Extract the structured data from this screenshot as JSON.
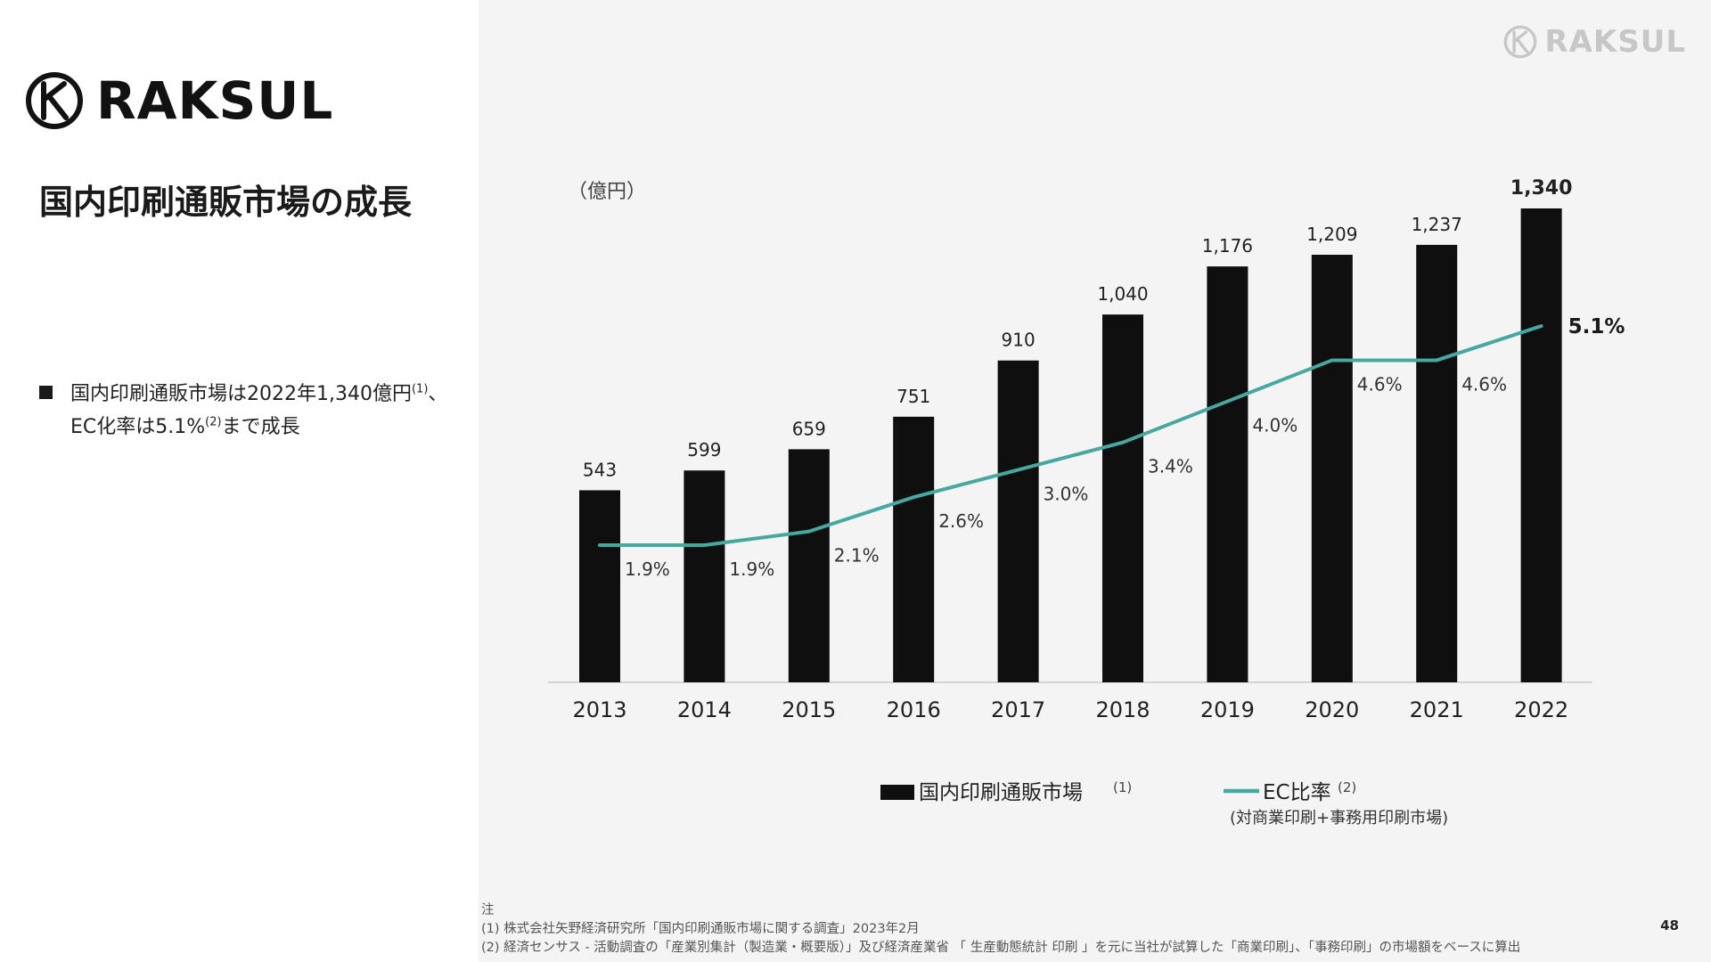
{
  "brand": {
    "name": "RAKSUL"
  },
  "title": "国内印刷通販市場の成長",
  "bullet": {
    "text_a": "国内印刷通販市場は2022年1,340億円",
    "sup1": "(1)",
    "text_b": "、EC化率は5.1%",
    "sup2": "(2)",
    "text_c": "まで成長"
  },
  "colors": {
    "bar": "#0f0f0f",
    "line": "#45a9a0",
    "panel": "#f4f4f4",
    "axis": "#c9c9c9"
  },
  "chart_data": {
    "type": "bar",
    "unit_label": "（億円）",
    "categories": [
      "2013",
      "2014",
      "2015",
      "2016",
      "2017",
      "2018",
      "2019",
      "2020",
      "2021",
      "2022"
    ],
    "series": [
      {
        "name": "国内印刷通販市場",
        "kind": "bar",
        "values": [
          543,
          599,
          659,
          751,
          910,
          1040,
          1176,
          1209,
          1237,
          1340
        ],
        "labels": [
          "543",
          "599",
          "659",
          "751",
          "910",
          "1,040",
          "1,176",
          "1,209",
          "1,237",
          "1,340"
        ]
      },
      {
        "name": "EC比率",
        "kind": "line",
        "values": [
          1.9,
          1.9,
          2.1,
          2.6,
          3.0,
          3.4,
          4.0,
          4.6,
          4.6,
          5.1
        ],
        "labels": [
          "1.9%",
          "1.9%",
          "2.1%",
          "2.6%",
          "3.0%",
          "3.4%",
          "4.0%",
          "4.6%",
          "4.6%",
          "5.1%"
        ]
      }
    ],
    "bar_ylim": [
      0,
      1400
    ],
    "line_ylim": [
      0,
      7
    ],
    "legend": {
      "bar_label": "国内印刷通販市場",
      "bar_sup": "(1)",
      "line_label": "EC比率",
      "line_sup": "(2)",
      "line_sub": "(対商業印刷+事務用印刷市場)"
    }
  },
  "footnotes": {
    "heading": "注",
    "items": [
      "(1) 株式会社矢野経済研究所「国内印刷通販市場に関する調査」2023年2月",
      "(2) 経済センサス - 活動調査の「産業別集計（製造業・概要版）」及び経済産業省 「 生産動態統計 印刷 」を元に当社が試算した「商業印刷」、「事務印刷」の市場額をベースに算出"
    ]
  },
  "page_number": "48"
}
